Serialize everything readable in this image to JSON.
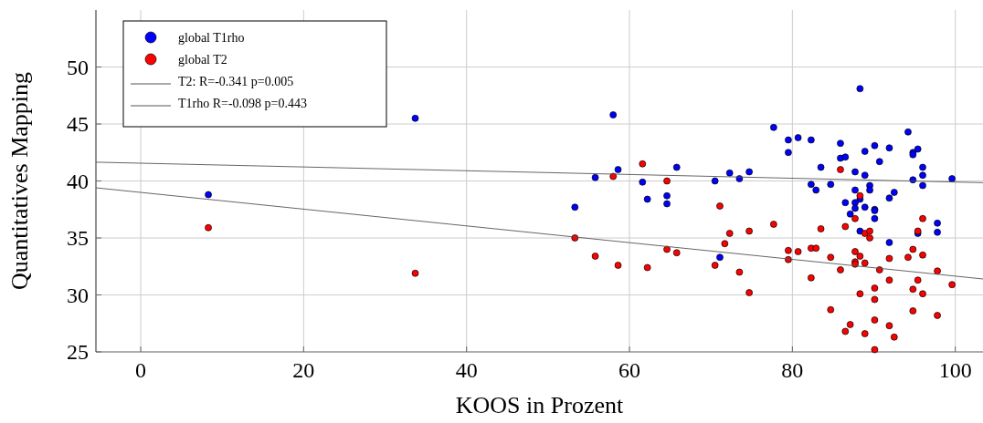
{
  "chart_data": {
    "type": "scatter",
    "xlabel": "KOOS in Prozent",
    "ylabel": "Quantitatives Mapping",
    "xlim": [
      -5.5,
      103.4
    ],
    "ylim": [
      25,
      55
    ],
    "xticks": [
      0,
      20,
      40,
      60,
      80,
      100
    ],
    "yticks": [
      25,
      30,
      35,
      40,
      45,
      50
    ],
    "grid": true,
    "legend": "top left",
    "marker": "circle",
    "series": [
      {
        "name": "global T1rho",
        "color": "#0000ff",
        "x": [
          8.3,
          33.7,
          53.3,
          55.8,
          58.0,
          77.7,
          65.8,
          58.6,
          72.3,
          74.7,
          61.6,
          70.5,
          73.5,
          62.2,
          64.6,
          64.6,
          71.1,
          88.3,
          94.2,
          79.5,
          80.7,
          82.3,
          85.9,
          90.1,
          91.9,
          95.4,
          94.8,
          94.8,
          79.5,
          85.9,
          86.5,
          88.9,
          90.7,
          83.5,
          87.7,
          88.9,
          96.0,
          96.0,
          94.8,
          99.6,
          96.0,
          82.3,
          82.9,
          84.7,
          87.7,
          89.5,
          89.5,
          92.5,
          91.9,
          88.3,
          86.5,
          87.7,
          87.7,
          88.9,
          90.1,
          90.1,
          87.1,
          90.1,
          97.8,
          97.8,
          95.4,
          88.3,
          91.9
        ],
        "values": [
          38.8,
          45.5,
          37.7,
          40.3,
          45.8,
          44.7,
          41.2,
          41.0,
          40.7,
          40.8,
          39.9,
          40.0,
          40.2,
          38.4,
          38.7,
          38.0,
          33.3,
          48.1,
          44.3,
          43.6,
          43.8,
          43.6,
          43.3,
          43.1,
          42.9,
          42.8,
          42.5,
          42.3,
          42.5,
          42.0,
          42.1,
          42.6,
          41.7,
          41.2,
          40.8,
          40.5,
          41.2,
          40.5,
          40.1,
          40.2,
          39.6,
          39.7,
          39.2,
          39.7,
          39.2,
          39.6,
          39.2,
          39.0,
          38.5,
          38.4,
          38.1,
          38.1,
          37.6,
          37.7,
          37.5,
          37.4,
          37.1,
          36.7,
          36.3,
          35.5,
          35.4,
          35.6,
          34.6
        ]
      },
      {
        "name": "global T2",
        "color": "#ff0000",
        "x": [
          8.3,
          33.7,
          53.3,
          55.8,
          61.6,
          58.0,
          64.6,
          71.1,
          77.7,
          72.3,
          74.7,
          71.7,
          58.6,
          62.2,
          64.6,
          65.8,
          70.5,
          73.5,
          74.7,
          85.9,
          88.3,
          87.7,
          86.5,
          83.5,
          96.0,
          95.4,
          88.9,
          89.5,
          89.5,
          79.5,
          80.7,
          82.3,
          82.9,
          79.5,
          84.7,
          87.7,
          88.3,
          87.7,
          87.7,
          88.9,
          91.9,
          94.8,
          96.0,
          94.2,
          85.9,
          90.7,
          97.8,
          82.3,
          91.9,
          95.4,
          99.6,
          90.1,
          94.8,
          96.0,
          88.3,
          90.1,
          84.7,
          94.8,
          97.8,
          87.1,
          86.5,
          88.9,
          90.1,
          91.9,
          92.5,
          90.1
        ],
        "values": [
          35.9,
          31.9,
          35.0,
          33.4,
          41.5,
          40.4,
          40.0,
          37.8,
          36.2,
          35.4,
          35.6,
          34.5,
          32.6,
          32.4,
          34.0,
          33.7,
          32.6,
          32.0,
          30.2,
          41.0,
          38.7,
          36.7,
          36.0,
          35.8,
          36.7,
          35.6,
          35.4,
          35.6,
          35.0,
          33.9,
          33.8,
          34.1,
          34.1,
          33.1,
          33.3,
          33.8,
          33.4,
          32.9,
          32.7,
          32.8,
          33.2,
          34.0,
          33.5,
          33.3,
          32.2,
          32.2,
          32.1,
          31.5,
          31.3,
          31.3,
          30.9,
          30.6,
          30.5,
          30.1,
          30.1,
          29.6,
          28.7,
          28.6,
          28.2,
          27.4,
          26.8,
          26.6,
          27.8,
          27.3,
          26.3,
          25.2
        ]
      },
      {
        "name": "T2: R=-0.341 p=0.005",
        "type": "line",
        "marker": "none",
        "color": "#555555",
        "x": [
          -5.5,
          103.4
        ],
        "values": [
          39.4,
          31.4
        ]
      },
      {
        "name": "T1rho R=-0.098 p=0.443",
        "type": "line",
        "marker": "none",
        "color": "#555555",
        "x": [
          -5.5,
          103.4
        ],
        "values": [
          41.65,
          39.85
        ]
      }
    ]
  }
}
